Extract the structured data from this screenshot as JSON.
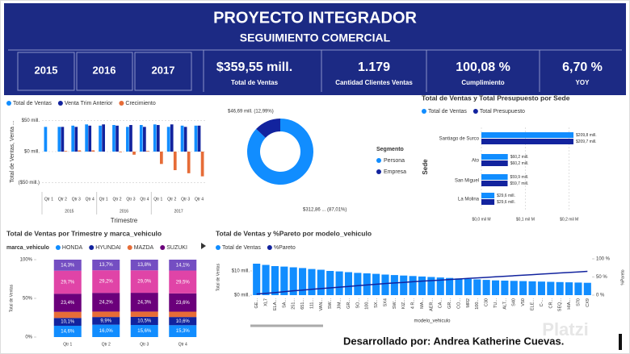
{
  "header": {
    "title": "PROYECTO INTEGRADOR",
    "subtitle": "SEGUIMIENTO COMERCIAL",
    "years": [
      "2015",
      "2016",
      "2017"
    ],
    "kpis": [
      {
        "value": "$359,55 mill.",
        "label": "Total de Ventas"
      },
      {
        "value": "1.179",
        "label": "Cantidad Clientes Ventas"
      },
      {
        "value": "100,08 %",
        "label": "Cumplimiento"
      },
      {
        "value": "6,70 %",
        "label": "YOY"
      }
    ]
  },
  "footer": "Desarrollado por: Andrea Katherine Cuevas.",
  "watermark": "Platzi",
  "chart_data": [
    {
      "type": "bar",
      "ylabel": "Total de Ventas, Venta ...",
      "xlabel": "Trimestre",
      "categories": [
        "Qtr 1",
        "Qtr 2",
        "Qtr 3",
        "Qtr 4",
        "Qtr 1",
        "Qtr 2",
        "Qtr 3",
        "Qtr 4",
        "Qtr 1",
        "Qtr 2",
        "Qtr 3",
        "Qtr 4"
      ],
      "x_groups": [
        "2015",
        "2016",
        "2017"
      ],
      "series": [
        {
          "name": "Total de Ventas",
          "color": "#118dff",
          "values": [
            40,
            40,
            42,
            44,
            42,
            43,
            40,
            43,
            44,
            40,
            42,
            42
          ]
        },
        {
          "name": "Venta Trim Anterior",
          "color": "#12239e",
          "values": [
            null,
            40,
            40,
            42,
            44,
            42,
            43,
            40,
            43,
            44,
            40,
            42
          ]
        },
        {
          "name": "Crecimiento",
          "color": "#e66c37",
          "values": [
            null,
            1,
            2,
            2,
            0,
            -1,
            -5,
            1,
            -20,
            -30,
            -35,
            -40
          ]
        }
      ],
      "ylim": [
        -60,
        60
      ],
      "yticks": [
        {
          "value": -50,
          "label": "($50 mill.)"
        },
        {
          "value": 0,
          "label": "$0 mill."
        },
        {
          "value": 50,
          "label": "$50 mill."
        }
      ],
      "grid": true
    },
    {
      "type": "donut",
      "legend_title": "Segmento",
      "categories": [
        "Persona",
        "Empresa"
      ],
      "values": [
        312.86,
        46.69
      ],
      "value_labels": [
        "$312,86 ... (87,01%)",
        "$46,69 mill. (12,99%)"
      ],
      "colors": [
        "#118dff",
        "#12239e"
      ]
    },
    {
      "type": "hbar",
      "title": "Total de Ventas y Total Presupuesto por Sede",
      "ylabel": "Sede",
      "categories": [
        "Santiago de Surco",
        "Ato",
        "San Miguel",
        "La Molina"
      ],
      "series": [
        {
          "name": "Total de Ventas",
          "color": "#118dff",
          "values": [
            209.8,
            60.2,
            59.9,
            29.6
          ],
          "value_labels": [
            "$209,8 mill.",
            "$60,2 mill.",
            "$59,9 mill.",
            "$29,6 mill."
          ]
        },
        {
          "name": "Total Presupuesto",
          "color": "#12239e",
          "values": [
            209.7,
            60.2,
            59.7,
            29.6
          ],
          "value_labels": [
            "$209,7 mill.",
            "$60,2 mill.",
            "$59,7 mill.",
            "$29,6 mill."
          ]
        }
      ],
      "xlim": [
        0,
        230
      ],
      "xticks": [
        {
          "value": 0,
          "label": "$0,0 mil M"
        },
        {
          "value": 100,
          "label": "$0,1 mil M"
        },
        {
          "value": 200,
          "label": "$0,2 mil M"
        }
      ],
      "grid": true
    },
    {
      "type": "stacked_bar_100",
      "title": "Total de Ventas por Trimestre y marca_vehiculo",
      "legend_title": "marca_vehiculo",
      "ylabel": "Total de Ventas",
      "categories": [
        "Qtr 1",
        "Qtr 2",
        "Qtr 3",
        "Qtr 4"
      ],
      "series": [
        {
          "name": "HONDA",
          "color": "#118dff",
          "values": [
            14.6,
            16.0,
            15.6,
            15.3
          ],
          "value_labels": [
            "14,6%",
            "16,0%",
            "15,6%",
            "15,3%"
          ]
        },
        {
          "name": "HYUNDAI",
          "color": "#12239e",
          "values": [
            10.1,
            9.9,
            10.5,
            10.6
          ],
          "value_labels": [
            "10,1%",
            "9,9%",
            "10,5%",
            "10,6%"
          ]
        },
        {
          "name": "MAZDA",
          "color": "#e66c37",
          "values": [
            7.9,
            7.0,
            6.8,
            6.9
          ]
        },
        {
          "name": "SUZUKI",
          "color": "#6b007b",
          "values": [
            23.4,
            24.2,
            24.3,
            23.6
          ],
          "value_labels": [
            "23,4%",
            "24,2%",
            "24,3%",
            "23,6%"
          ]
        },
        {
          "color": "#e044a7",
          "values": [
            29.7,
            29.2,
            29.0,
            29.5
          ],
          "value_labels": [
            "29,7%",
            "29,2%",
            "29,0%",
            "29,5%"
          ]
        },
        {
          "color": "#744ec2",
          "values": [
            14.3,
            13.7,
            13.8,
            14.1
          ],
          "value_labels": [
            "14,3%",
            "13,7%",
            "13,8%",
            "14,1%"
          ]
        }
      ],
      "ylim": [
        0,
        100
      ],
      "yticks": [
        {
          "value": 0,
          "label": "0%"
        },
        {
          "value": 50,
          "label": "50%"
        },
        {
          "value": 100,
          "label": "100%"
        }
      ]
    },
    {
      "type": "bar_line",
      "title": "Total de Ventas y %Pareto por modelo_vehiculo",
      "ylabel": "Total de Ventas",
      "y2label": "%Pareto",
      "xlabel": "modelo_vehiculo",
      "categories": [
        "GE...",
        "XL7",
        "ELA...",
        "SA...",
        "251...",
        "651...",
        "111...",
        "VAN...",
        "SW...",
        "JIM...",
        "GR...",
        "SO...",
        "100...",
        "SX...",
        "SX4",
        "SW...",
        "KIZ...",
        "4 R...",
        "MA...",
        "AER...",
        "CA...",
        "GR...",
        "CO...",
        "MR2",
        "100...",
        "C30",
        "TU...",
        "ALT...",
        "S40",
        "V50",
        "ELE...",
        "C-...",
        "CR...",
        "SEQ...",
        "HIA...",
        "S70",
        "CX9"
      ],
      "series": [
        {
          "name": "Total de Ventas",
          "color": "#118dff",
          "values": [
            13,
            12.5,
            12,
            11.8,
            11.5,
            11.2,
            10.8,
            10.5,
            10,
            9.8,
            9.5,
            9.2,
            9,
            8.8,
            8.5,
            8.3,
            8.1,
            7.9,
            7.7,
            7.5,
            7.3,
            7.1,
            6.9,
            6.7,
            6.5,
            6.3,
            6.1,
            6,
            5.9,
            5.8,
            5.7,
            5.6,
            5.5,
            5.4,
            5.3,
            5.2,
            5.1
          ]
        },
        {
          "name": "%Pareto",
          "color": "#12239e",
          "axis": "y2",
          "values": [
            3,
            5,
            7,
            9.5,
            12,
            14,
            16,
            18,
            20,
            22,
            24,
            26,
            28,
            30,
            32,
            33.5,
            35,
            37,
            38.5,
            40,
            41.5,
            43,
            44.5,
            46,
            47.5,
            49,
            50.5,
            52,
            53.5,
            55,
            56.5,
            58,
            59.5,
            61,
            62.5,
            64,
            65.5
          ]
        }
      ],
      "ylim": [
        0,
        15
      ],
      "yticks": [
        {
          "value": 0,
          "label": "$0 mill."
        },
        {
          "value": 10,
          "label": "$10 mill."
        }
      ],
      "y2lim": [
        0,
        100
      ],
      "y2ticks": [
        {
          "value": 0,
          "label": "0 %"
        },
        {
          "value": 50,
          "label": "50 %"
        },
        {
          "value": 100,
          "label": "100 %"
        }
      ]
    }
  ]
}
